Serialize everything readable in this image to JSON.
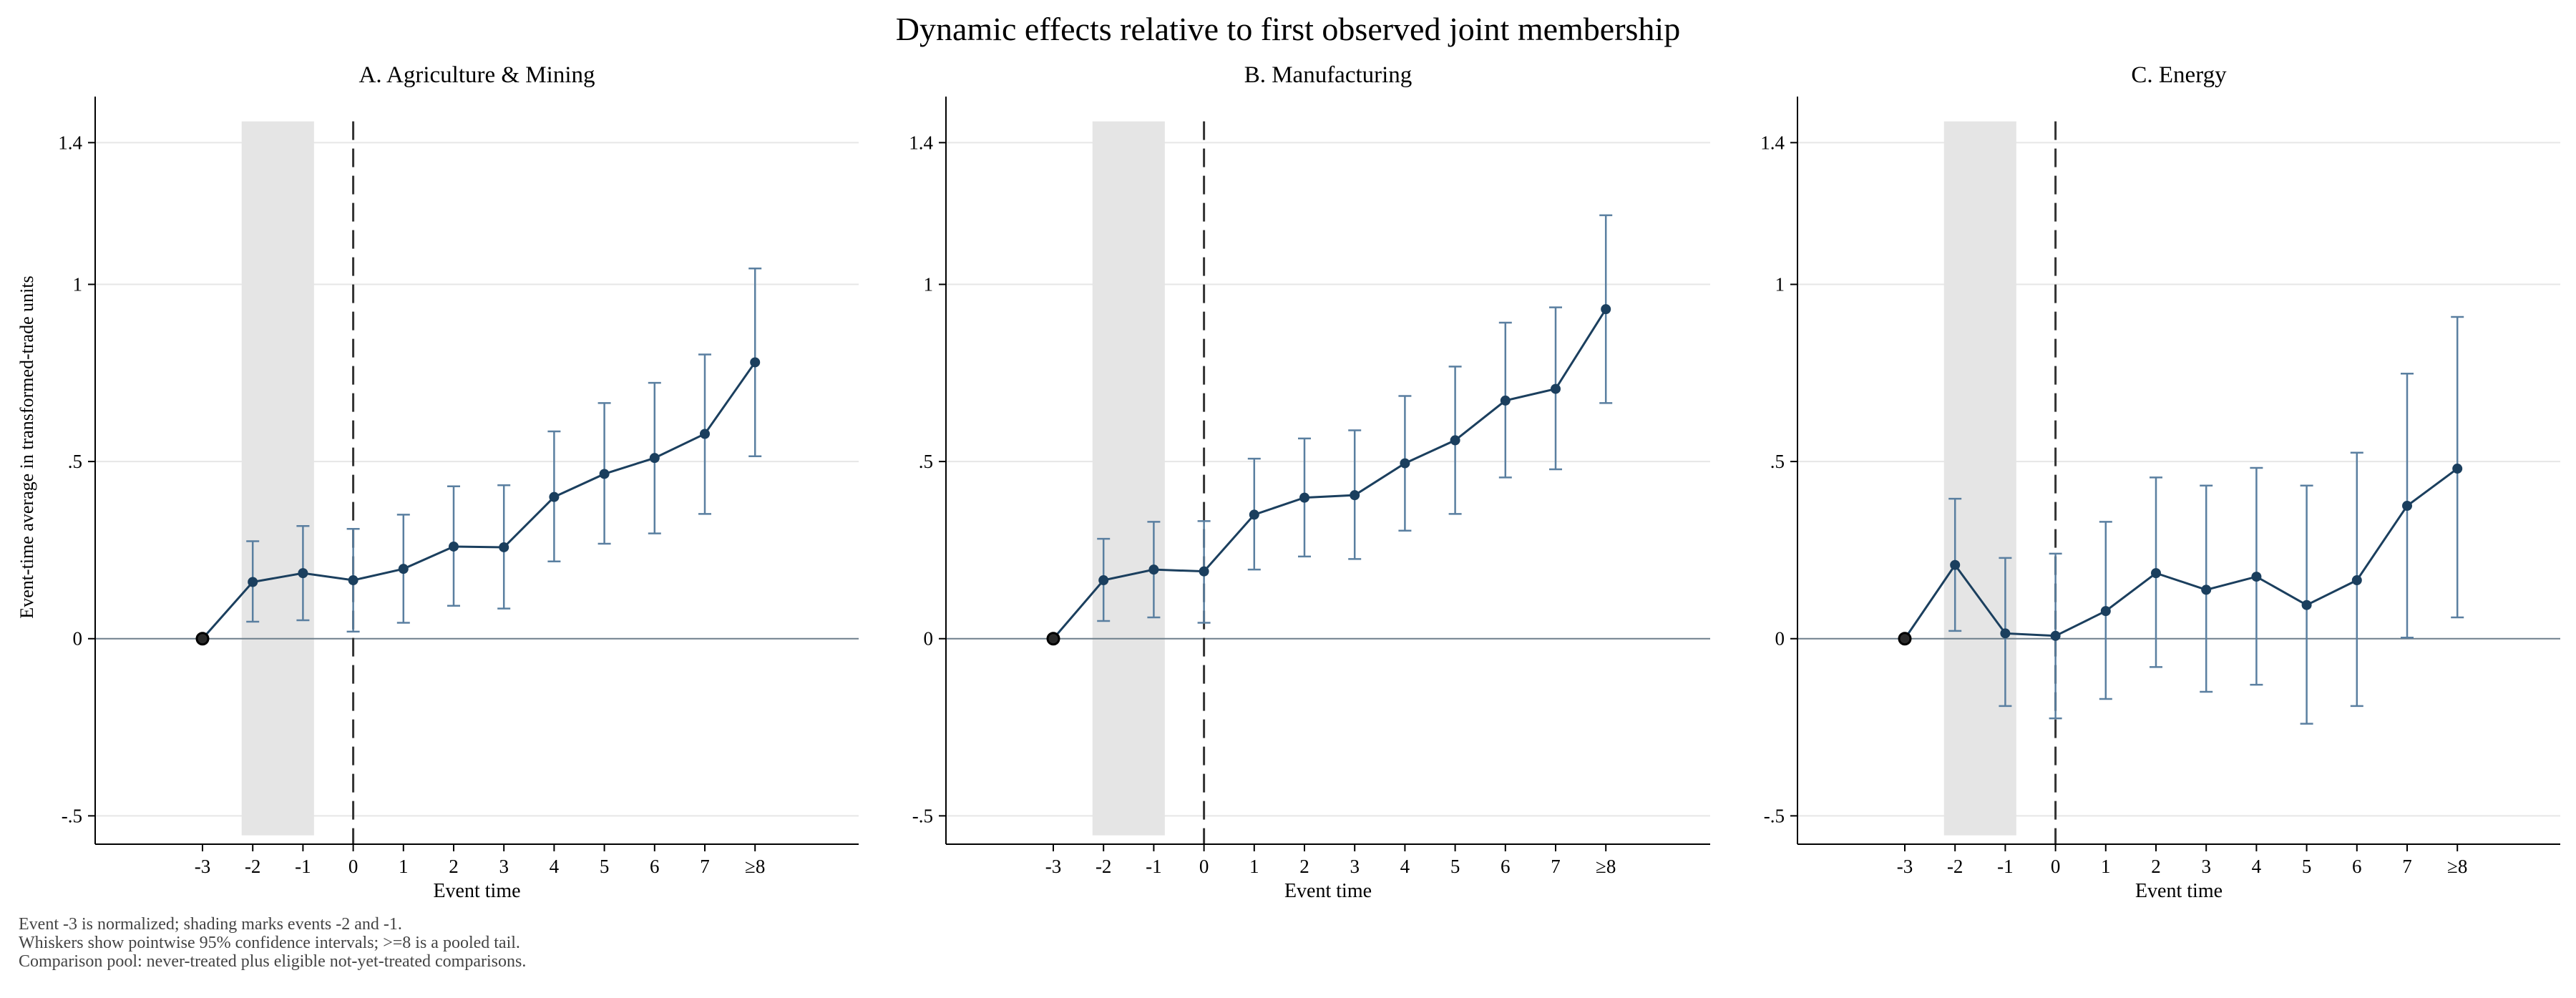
{
  "figure": {
    "title": "Dynamic effects relative to first observed joint membership",
    "ylabel": "Event-time average in transformed-trade units",
    "notes": [
      "Event -3 is normalized; shading marks events -2 and -1.",
      "Whiskers show pointwise 95% confidence intervals; >=8 is a pooled tail.",
      "Comparison pool: never-treated plus eligible not-yet-treated comparisons."
    ],
    "colors": {
      "series": "#1b3f5e",
      "whisker": "#5a7fa0",
      "shade": "#e5e5e5",
      "grid": "#e6e6e6",
      "zero": "#6e7f8c"
    }
  },
  "chart_data": [
    {
      "type": "line",
      "title": "A. Agriculture & Mining",
      "xlabel": "Event time",
      "ylabel": "Event-time average in transformed-trade units",
      "categories": [
        "-3",
        "-2",
        "-1",
        "0",
        "1",
        "2",
        "3",
        "4",
        "5",
        "6",
        "7",
        "≥8"
      ],
      "values": [
        0,
        0.16,
        0.185,
        0.165,
        0.197,
        0.26,
        0.258,
        0.4,
        0.465,
        0.51,
        0.578,
        0.78
      ],
      "ci_low": [
        0,
        0.048,
        0.052,
        0.02,
        0.045,
        0.093,
        0.085,
        0.218,
        0.268,
        0.297,
        0.352,
        0.515
      ],
      "ci_high": [
        0,
        0.275,
        0.318,
        0.31,
        0.35,
        0.43,
        0.433,
        0.585,
        0.665,
        0.722,
        0.802,
        1.045
      ],
      "yticks": [
        "-.5",
        "0",
        ".5",
        "1",
        "1.4"
      ],
      "ylim": [
        -0.58,
        1.53
      ],
      "shaded_events": [
        "-2",
        "-1"
      ],
      "event_line": "0",
      "grid": true
    },
    {
      "type": "line",
      "title": "B. Manufacturing",
      "xlabel": "Event time",
      "ylabel": "",
      "categories": [
        "-3",
        "-2",
        "-1",
        "0",
        "1",
        "2",
        "3",
        "4",
        "5",
        "6",
        "7",
        "≥8"
      ],
      "values": [
        0,
        0.165,
        0.195,
        0.19,
        0.35,
        0.398,
        0.405,
        0.495,
        0.56,
        0.672,
        0.705,
        0.93
      ],
      "ci_low": [
        0,
        0.05,
        0.06,
        0.045,
        0.195,
        0.232,
        0.225,
        0.305,
        0.352,
        0.455,
        0.478,
        0.665
      ],
      "ci_high": [
        0,
        0.282,
        0.33,
        0.332,
        0.508,
        0.565,
        0.588,
        0.685,
        0.768,
        0.892,
        0.935,
        1.195
      ],
      "yticks": [
        "-.5",
        "0",
        ".5",
        "1",
        "1.4"
      ],
      "ylim": [
        -0.58,
        1.53
      ],
      "shaded_events": [
        "-2",
        "-1"
      ],
      "event_line": "0",
      "grid": true
    },
    {
      "type": "line",
      "title": "C. Energy",
      "xlabel": "Event time",
      "ylabel": "",
      "categories": [
        "-3",
        "-2",
        "-1",
        "0",
        "1",
        "2",
        "3",
        "4",
        "5",
        "6",
        "7",
        "≥8"
      ],
      "values": [
        0,
        0.208,
        0.015,
        0.008,
        0.078,
        0.185,
        0.138,
        0.175,
        0.095,
        0.165,
        0.375,
        0.48
      ],
      "ci_low": [
        0,
        0.022,
        -0.19,
        -0.225,
        -0.17,
        -0.08,
        -0.15,
        -0.13,
        -0.24,
        -0.19,
        0.003,
        0.06
      ],
      "ci_high": [
        0,
        0.395,
        0.228,
        0.24,
        0.33,
        0.455,
        0.432,
        0.482,
        0.432,
        0.525,
        0.748,
        0.908
      ],
      "yticks": [
        "-.5",
        "0",
        ".5",
        "1",
        "1.4"
      ],
      "ylim": [
        -0.58,
        1.53
      ],
      "shaded_events": [
        "-2",
        "-1"
      ],
      "event_line": "0",
      "grid": true
    }
  ]
}
